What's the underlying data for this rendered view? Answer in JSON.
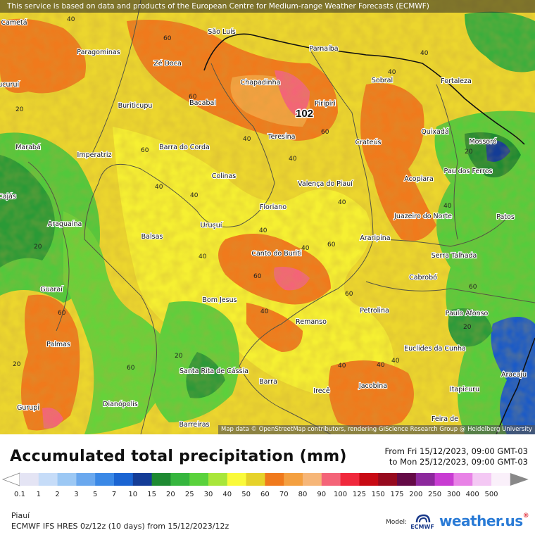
{
  "banner_text": "This service is based on data and products of the European Centre for Medium-range Weather Forecasts (ECMWF)",
  "attribution": "Map data © OpenStreetMap contributors, rendering GIScience Research Group @ Heidelberg University",
  "title": "Accumulated total precipitation (mm)",
  "period_from": "From Fri 15/12/2023, 09:00 GMT-03",
  "period_to": "to Mon 25/12/2023, 09:00 GMT-03",
  "region": "Piauí",
  "model_run": "ECMWF IFS HRES 0z/12z (10 days) from 15/12/2023/12z",
  "model_label": "Model:",
  "model_logo_text": "ECMWF",
  "brand": {
    "name": "weather.us",
    "sup": "®"
  },
  "scale": {
    "labels": [
      "0.1",
      "1",
      "2",
      "3",
      "5",
      "7",
      "10",
      "15",
      "20",
      "25",
      "30",
      "40",
      "50",
      "60",
      "70",
      "80",
      "90",
      "100",
      "125",
      "150",
      "175",
      "200",
      "250",
      "300",
      "400",
      "500"
    ],
    "colors": [
      "#e4e4f4",
      "#c6dcf8",
      "#9cc8f4",
      "#6aa8ee",
      "#3a88e6",
      "#1a64d2",
      "#143c96",
      "#1e8a32",
      "#36b63e",
      "#5ad23c",
      "#a8e63a",
      "#fafa3a",
      "#e6d22a",
      "#f07a1c",
      "#f4a040",
      "#f6b678",
      "#f46478",
      "#f0283c",
      "#c80a14",
      "#960a1e",
      "#640a46",
      "#8c289c",
      "#c83cd2",
      "#e882e6",
      "#f4c8f4",
      "#faf0fa"
    ]
  },
  "map": {
    "cities": [
      {
        "name": "São Luís"
      },
      {
        "name": "Parnaíba"
      },
      {
        "name": "Fortaleza"
      },
      {
        "name": "Paragominas"
      },
      {
        "name": "Zé Doca"
      },
      {
        "name": "Chapadinha"
      },
      {
        "name": "Sobral"
      },
      {
        "name": "Piripiri"
      },
      {
        "name": "Buriticupu"
      },
      {
        "name": "Bacabal"
      },
      {
        "name": "Quixadá"
      },
      {
        "name": "Teresina"
      },
      {
        "name": "Crateús"
      },
      {
        "name": "Mossoró"
      },
      {
        "name": "Marabá"
      },
      {
        "name": "Imperatriz"
      },
      {
        "name": "Barra do Corda"
      },
      {
        "name": "Pau dos Ferros"
      },
      {
        "name": "Colinas"
      },
      {
        "name": "Valença do Piauí"
      },
      {
        "name": "Acopiara"
      },
      {
        "name": "Floriano"
      },
      {
        "name": "Juazeiro do Norte"
      },
      {
        "name": "Patos"
      },
      {
        "name": "Araguaína"
      },
      {
        "name": "Uruçuí"
      },
      {
        "name": "Balsas"
      },
      {
        "name": "Araripina"
      },
      {
        "name": "Serra Talhada"
      },
      {
        "name": "Canto do Buriti"
      },
      {
        "name": "Cabrobó"
      },
      {
        "name": "Guaraí"
      },
      {
        "name": "Bom Jesus"
      },
      {
        "name": "Petrolina"
      },
      {
        "name": "Paulo Afonso"
      },
      {
        "name": "Remanso"
      },
      {
        "name": "Palmas"
      },
      {
        "name": "Euclides da Cunha"
      },
      {
        "name": "Santa Rita de Cássia"
      },
      {
        "name": "Barra"
      },
      {
        "name": "Irecê"
      },
      {
        "name": "Jacobina"
      },
      {
        "name": "Itapicuru"
      },
      {
        "name": "Aracaju"
      },
      {
        "name": "Gurupi"
      },
      {
        "name": "Dianópolis"
      },
      {
        "name": "Feira de"
      },
      {
        "name": "Barreiras"
      },
      {
        "name": "Cametá"
      },
      {
        "name": "Tucuruí"
      },
      {
        "name": "Cajás"
      }
    ],
    "contours": [
      {
        "value": "40"
      },
      {
        "value": "60"
      },
      {
        "value": "20"
      },
      {
        "value": "40"
      },
      {
        "value": "60"
      },
      {
        "value": "40"
      },
      {
        "value": "40"
      },
      {
        "value": "60"
      },
      {
        "value": "20"
      },
      {
        "value": "40"
      },
      {
        "value": "60"
      },
      {
        "value": "40"
      },
      {
        "value": "40"
      },
      {
        "value": "20"
      },
      {
        "value": "60"
      },
      {
        "value": "40"
      },
      {
        "value": "40"
      },
      {
        "value": "60"
      },
      {
        "value": "40"
      },
      {
        "value": "20"
      },
      {
        "value": "60"
      },
      {
        "value": "40"
      },
      {
        "value": "40"
      },
      {
        "value": "60"
      },
      {
        "value": "20"
      },
      {
        "value": "40"
      },
      {
        "value": "60"
      },
      {
        "value": "40"
      },
      {
        "value": "20"
      },
      {
        "value": "60"
      },
      {
        "value": "40"
      },
      {
        "value": "40"
      }
    ],
    "max_label": "102"
  }
}
